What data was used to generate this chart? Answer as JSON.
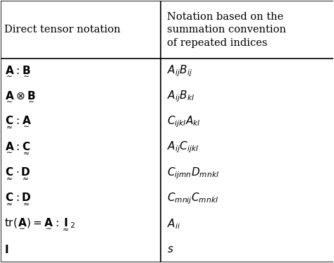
{
  "title": "",
  "col1_header": "Direct tensor notation",
  "col2_header": "Notation based on the\nsummation convention\nof repeated indices",
  "rows": [
    {
      "col1": "$\\underset{\\sim}{\\mathbf{A}} : \\underset{\\sim}{\\mathbf{B}}$",
      "col2": "$A_{ij} B_{ij}$"
    },
    {
      "col1": "$\\underset{\\sim}{\\mathbf{A}} \\otimes \\underset{\\sim}{\\mathbf{B}}$",
      "col2": "$A_{ij} B_{kl}$"
    },
    {
      "col1": "$\\underset{\\approx}{\\mathbf{C}} : \\underset{\\sim}{\\mathbf{A}}$",
      "col2": "$C_{ijkl} A_{kl}$"
    },
    {
      "col1": "$\\underset{\\sim}{\\mathbf{A}} : \\underset{\\approx}{\\mathbf{C}}$",
      "col2": "$A_{ij} C_{ijkl}$"
    },
    {
      "col1": "$\\underset{\\approx}{\\mathbf{C}} \\cdot \\underset{\\approx}{\\mathbf{D}}$",
      "col2": "$C_{ijmn} D_{mnkl}$"
    },
    {
      "col1": "$\\underset{\\approx}{\\mathbf{C}} : \\underset{\\approx}{\\mathbf{D}}$",
      "col2": "$C_{mnij} C_{mnkl}$"
    },
    {
      "col1": "$\\mathrm{tr}(\\underset{\\sim}{\\mathbf{A}}) = \\underset{\\sim}{\\mathbf{A}} : \\underset{\\approx}{\\mathbf{I}}_2$",
      "col2": "$A_{ii}$"
    },
    {
      "col1": "$\\mathbf{I}$",
      "col2": "$s$"
    }
  ],
  "col_split": 0.48,
  "bg_color": "white",
  "text_color": "black",
  "font_size": 11,
  "header_font_size": 10.5
}
